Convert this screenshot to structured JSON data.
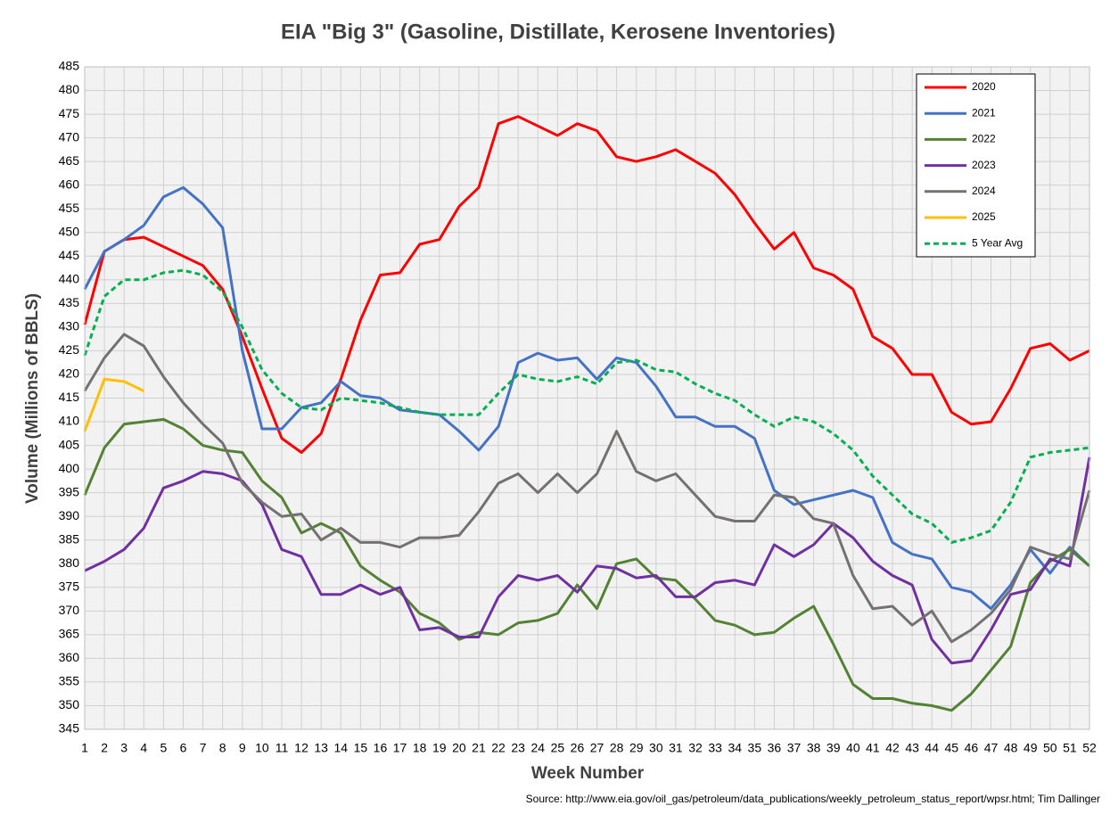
{
  "chart_data": {
    "type": "line",
    "title": "EIA \"Big 3\" (Gasoline, Distillate, Kerosene Inventories)",
    "xlabel": "Week Number",
    "ylabel": "Volume (Millions of BBLS)",
    "source": "Source: http://www.eia.gov/oil_gas/petroleum/data_publications/weekly_petroleum_status_report/wpsr.html; Tim Dallinger",
    "x": [
      1,
      2,
      3,
      4,
      5,
      6,
      7,
      8,
      9,
      10,
      11,
      12,
      13,
      14,
      15,
      16,
      17,
      18,
      19,
      20,
      21,
      22,
      23,
      24,
      25,
      26,
      27,
      28,
      29,
      30,
      31,
      32,
      33,
      34,
      35,
      36,
      37,
      38,
      39,
      40,
      41,
      42,
      43,
      44,
      45,
      46,
      47,
      48,
      49,
      50,
      51,
      52
    ],
    "xlim": [
      1,
      52
    ],
    "xticks": [
      1,
      2,
      3,
      4,
      5,
      6,
      7,
      8,
      9,
      10,
      11,
      12,
      13,
      14,
      15,
      16,
      17,
      18,
      19,
      20,
      21,
      22,
      23,
      24,
      25,
      26,
      27,
      28,
      29,
      30,
      31,
      32,
      33,
      34,
      35,
      36,
      37,
      38,
      39,
      40,
      41,
      42,
      43,
      44,
      45,
      46,
      47,
      48,
      49,
      50,
      51,
      52
    ],
    "ylim": [
      345,
      485
    ],
    "yticks": [
      345,
      350,
      355,
      360,
      365,
      370,
      375,
      380,
      385,
      390,
      395,
      400,
      405,
      410,
      415,
      420,
      425,
      430,
      435,
      440,
      445,
      450,
      455,
      460,
      465,
      470,
      475,
      480,
      485
    ],
    "grid": true,
    "legend": "top-right",
    "series": [
      {
        "name": "2020",
        "color": "#ff0000",
        "dashed": false,
        "values": [
          430.5,
          446,
          448.5,
          449,
          447,
          445,
          443,
          438,
          428,
          417,
          406.5,
          403.5,
          407.5,
          419,
          431.5,
          441,
          441.5,
          447.5,
          448.5,
          455.5,
          459.5,
          473,
          474.5,
          472.5,
          470.5,
          473,
          471.5,
          466,
          465,
          466,
          467.5,
          465,
          462.5,
          458,
          452,
          446.5,
          450,
          442.5,
          441,
          438,
          428,
          425.5,
          420,
          420,
          412,
          409.5,
          410,
          417,
          425.5,
          426.5,
          423,
          425
        ]
      },
      {
        "name": "2021",
        "color": "#4472c4",
        "dashed": false,
        "values": [
          438,
          446,
          448.5,
          451.5,
          457.5,
          459.5,
          456,
          451,
          425,
          408.5,
          408.5,
          413,
          414,
          418.5,
          415.5,
          415,
          412.5,
          412,
          411.5,
          408,
          404,
          409,
          422.5,
          424.5,
          423,
          423.5,
          419,
          423.5,
          422.5,
          417.5,
          411,
          411,
          409,
          409,
          406.5,
          395.5,
          392.5,
          393.5,
          394.5,
          395.5,
          394,
          384.5,
          382,
          381,
          375,
          374,
          370.5,
          375.5,
          383,
          378,
          383.5,
          379.5
        ]
      },
      {
        "name": "2022",
        "color": "#548235",
        "dashed": false,
        "values": [
          394.5,
          404.5,
          409.5,
          410,
          410.5,
          408.5,
          405,
          404,
          403.5,
          397.5,
          394,
          386.5,
          388.5,
          386.5,
          379.5,
          376.5,
          374,
          369.5,
          367.5,
          364,
          365.5,
          365,
          367.5,
          368,
          369.5,
          375.5,
          370.5,
          380,
          381,
          377,
          376.5,
          372.5,
          368,
          367,
          365,
          365.5,
          368.5,
          371,
          363,
          354.5,
          351.5,
          351.5,
          350.5,
          350,
          349,
          352.5,
          357.5,
          362.5,
          376,
          380.5,
          383,
          379.5
        ]
      },
      {
        "name": "2023",
        "color": "#7030a0",
        "dashed": false,
        "values": [
          378.5,
          380.5,
          383,
          387.5,
          396,
          397.5,
          399.5,
          399,
          397.5,
          392.5,
          383,
          381.5,
          373.5,
          373.5,
          375.5,
          373.5,
          375,
          366,
          366.5,
          364.5,
          364.5,
          373,
          377.5,
          376.5,
          377.5,
          374,
          379.5,
          379,
          377,
          377.5,
          373,
          373,
          376,
          376.5,
          375.5,
          384,
          381.5,
          384,
          388.5,
          385.5,
          380.5,
          377.5,
          375.5,
          364,
          359,
          359.5,
          366,
          373.5,
          374.5,
          381,
          379.5,
          402.5
        ]
      },
      {
        "name": "2024",
        "color": "#767171",
        "dashed": false,
        "values": [
          416.5,
          423.5,
          428.5,
          426,
          419.5,
          414,
          409.5,
          405.5,
          397,
          393,
          390,
          390.5,
          385,
          387.5,
          384.5,
          384.5,
          383.5,
          385.5,
          385.5,
          386,
          391,
          397,
          399,
          395,
          399,
          395,
          399,
          408,
          399.5,
          397.5,
          399,
          394.5,
          390,
          389,
          389,
          394.5,
          394,
          389.5,
          388.5,
          377.5,
          370.5,
          371,
          367,
          370,
          363.5,
          366,
          369.5,
          374.5,
          383.5,
          382,
          381,
          395.5
        ]
      },
      {
        "name": "2025",
        "color": "#ffc000",
        "dashed": false,
        "values": [
          408,
          419,
          418.5,
          416.5,
          null,
          null,
          null,
          null,
          null,
          null,
          null,
          null,
          null,
          null,
          null,
          null,
          null,
          null,
          null,
          null,
          null,
          null,
          null,
          null,
          null,
          null,
          null,
          null,
          null,
          null,
          null,
          null,
          null,
          null,
          null,
          null,
          null,
          null,
          null,
          null,
          null,
          null,
          null,
          null,
          null,
          null,
          null,
          null,
          null,
          null,
          null,
          null
        ]
      },
      {
        "name": "5 Year Avg",
        "color": "#00b050",
        "dashed": true,
        "values": [
          424,
          436.5,
          440,
          440,
          441.5,
          442,
          441,
          437.5,
          430,
          421,
          416,
          413,
          412.5,
          415,
          414.5,
          414,
          413,
          412,
          411.5,
          411.5,
          411.5,
          416,
          420,
          419,
          418.5,
          419.5,
          418,
          422.5,
          423,
          421,
          420.5,
          418,
          416,
          414.5,
          411.5,
          409,
          411,
          410,
          407.5,
          404,
          398.5,
          394.5,
          390.5,
          388.5,
          384.5,
          385.5,
          387,
          393,
          402.5,
          403.5,
          404,
          404.5
        ]
      }
    ]
  }
}
